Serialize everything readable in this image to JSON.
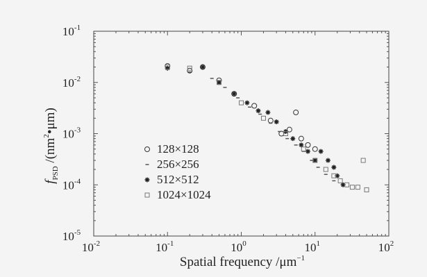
{
  "chart_data": {
    "type": "scatter",
    "x_scale": "log",
    "y_scale": "log",
    "xlim": [
      0.01,
      100
    ],
    "ylim": [
      1e-05,
      0.1
    ],
    "x_ticks": [
      {
        "base": "10",
        "exp": "-2",
        "value": 0.01
      },
      {
        "base": "10",
        "exp": "-1",
        "value": 0.1
      },
      {
        "base": "10",
        "exp": "0",
        "value": 1
      },
      {
        "base": "10",
        "exp": "1",
        "value": 10
      },
      {
        "base": "10",
        "exp": "2",
        "value": 100
      }
    ],
    "y_ticks": [
      {
        "base": "10",
        "exp": "-5",
        "value": 1e-05
      },
      {
        "base": "10",
        "exp": "-4",
        "value": 0.0001
      },
      {
        "base": "10",
        "exp": "-3",
        "value": 0.001
      },
      {
        "base": "10",
        "exp": "-2",
        "value": 0.01
      },
      {
        "base": "10",
        "exp": "-1",
        "value": 0.1
      }
    ],
    "xlabel": "Spatial frequency /μm",
    "xlabel_sup": "−1",
    "ylabel_main": "f",
    "ylabel_sub": "PSD",
    "ylabel_rest_a": " /(nm",
    "ylabel_sup": "2",
    "ylabel_rest_b": "•μm)",
    "legend_position": "center-left",
    "series": [
      {
        "name": "128×128",
        "marker": "circle",
        "x": [
          0.1,
          0.2,
          0.3,
          0.5,
          0.8,
          1.5,
          2.5,
          3.5,
          4.5,
          5.5,
          6.5,
          8,
          10
        ],
        "y": [
          0.021,
          0.017,
          0.02,
          0.011,
          0.006,
          0.0035,
          0.0018,
          0.001,
          0.0012,
          0.0026,
          0.0008,
          0.0006,
          0.0005
        ]
      },
      {
        "name": "256×256",
        "marker": "dot",
        "x": [
          0.1,
          0.2,
          0.4,
          0.6,
          0.9,
          1.3,
          1.8,
          2.5,
          3.3,
          4.2,
          5.5,
          7,
          9,
          11,
          14,
          18
        ],
        "y": [
          0.019,
          0.016,
          0.012,
          0.008,
          0.005,
          0.0033,
          0.0024,
          0.0016,
          0.0011,
          0.0008,
          0.0006,
          0.00045,
          0.0003,
          0.00022,
          0.00016,
          0.00012
        ]
      },
      {
        "name": "512×512",
        "marker": "star",
        "x": [
          0.1,
          0.3,
          0.5,
          0.8,
          1.2,
          1.7,
          2.3,
          3,
          4,
          5,
          6.5,
          8,
          10,
          12,
          15,
          18,
          20,
          24
        ],
        "y": [
          0.019,
          0.02,
          0.01,
          0.006,
          0.004,
          0.0028,
          0.0026,
          0.0017,
          0.0011,
          0.0008,
          0.0006,
          0.00045,
          0.0003,
          0.00045,
          0.0003,
          0.00022,
          0.00015,
          0.0001
        ]
      },
      {
        "name": "1024×1024",
        "marker": "square",
        "x": [
          0.1,
          0.2,
          0.5,
          1,
          2,
          4,
          7,
          10,
          14,
          18,
          22,
          27,
          32,
          38,
          45,
          50
        ],
        "y": [
          0.02,
          0.019,
          0.01,
          0.004,
          0.002,
          0.001,
          0.0005,
          0.0003,
          0.0002,
          0.00015,
          0.00012,
          0.0001,
          9e-05,
          9e-05,
          0.0003,
          8e-05
        ]
      }
    ]
  }
}
